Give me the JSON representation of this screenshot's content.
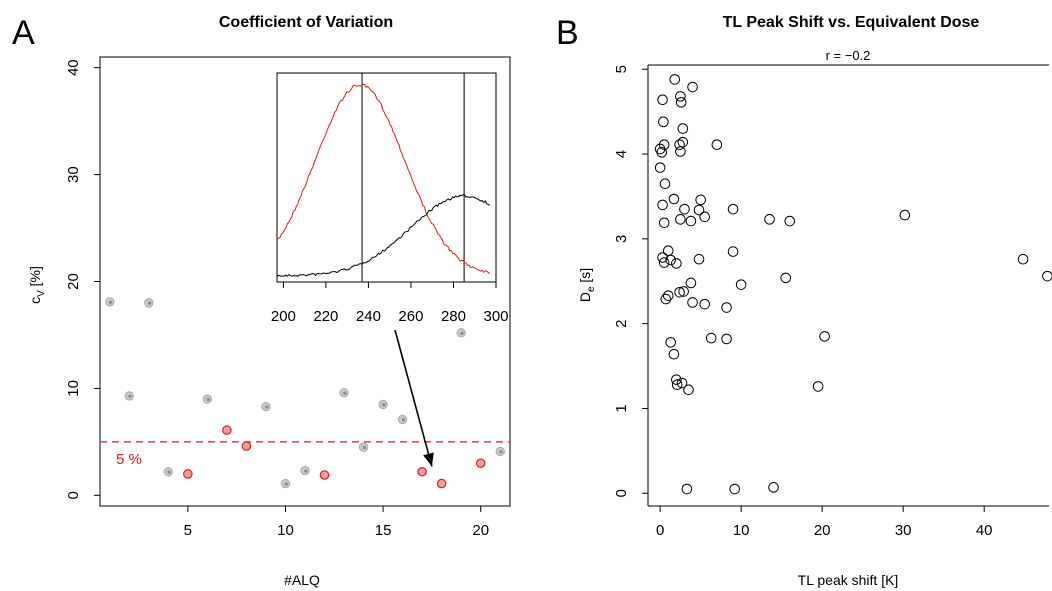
{
  "chart_data": [
    {
      "panel": "A",
      "type": "scatter",
      "title": "Coefficient of Variation",
      "xlabel": "#ALQ",
      "ylabel": "c",
      "ylabel_sub": "V",
      "ylabel_unit": " [%]",
      "xlim": [
        0.5,
        21.5
      ],
      "ylim": [
        -1,
        41
      ],
      "xticks": [
        5,
        10,
        15,
        20
      ],
      "yticks": [
        0,
        10,
        20,
        30,
        40
      ],
      "grid": false,
      "reference_line": {
        "y": 5,
        "label": "5 %",
        "color": "#e31a1c"
      },
      "series": [
        {
          "color": "#aaaaaa",
          "x": [
            1,
            2,
            3,
            4,
            6,
            9,
            10,
            11,
            13,
            14,
            15,
            16,
            19,
            21
          ],
          "y": [
            18.1,
            9.3,
            18.0,
            2.2,
            9.0,
            8.3,
            1.1,
            2.3,
            9.6,
            4.5,
            8.5,
            7.1,
            15.2,
            4.1
          ]
        },
        {
          "color": "#e31a1c",
          "x": [
            5,
            7,
            8,
            12,
            17,
            18,
            20
          ],
          "y": [
            2.0,
            6.1,
            4.6,
            1.9,
            2.2,
            1.1,
            3.0
          ]
        }
      ],
      "inset": {
        "type": "line",
        "xlim": [
          197,
          300
        ],
        "xticks": [
          200,
          220,
          240,
          260,
          280,
          300
        ],
        "vlines": [
          237,
          285
        ],
        "series": [
          {
            "color": "#e31a1c",
            "peak_x": 237
          },
          {
            "color": "#000000",
            "peak_x": 285
          }
        ]
      },
      "arrow": {
        "to_x": 17.5,
        "to_y": 2.7
      }
    },
    {
      "panel": "B",
      "type": "scatter",
      "title": "TL Peak Shift vs. Equivalent Dose",
      "subtitle": "r =  −0.2",
      "xlabel": "TL peak shift [K]",
      "ylabel": "D",
      "ylabel_sub": "e",
      "ylabel_unit": " [s]",
      "xlim": [
        -1.5,
        48
      ],
      "ylim": [
        -0.15,
        5.05
      ],
      "xticks": [
        0,
        10,
        20,
        30,
        40
      ],
      "yticks": [
        0,
        1,
        2,
        3,
        4,
        5
      ],
      "grid": false,
      "series": [
        {
          "color": "#000000",
          "x": [
            1.8,
            4.0,
            2.5,
            2.6,
            0.3,
            2.8,
            0.4,
            2.8,
            0.5,
            0.0,
            2.4,
            7.0,
            0.2,
            2.5,
            0.0,
            0.6,
            1.7,
            5.0,
            0.3,
            3.0,
            4.8,
            9.0,
            5.5,
            13.5,
            16.0,
            30.2,
            2.5,
            3.8,
            0.5,
            1.0,
            0.3,
            9.0,
            1.3,
            0.5,
            44.8,
            4.8,
            47.8,
            15.5,
            3.8,
            10.0,
            2.0,
            2.9,
            2.4,
            1.0,
            0.7,
            4.0,
            8.2,
            5.5,
            1.3,
            6.3,
            8.2,
            20.3,
            1.7,
            2.0,
            2.1,
            2.7,
            3.5,
            19.5,
            3.3,
            9.2,
            14.0
          ],
          "y": [
            4.88,
            4.79,
            4.68,
            4.61,
            4.64,
            4.3,
            4.38,
            4.14,
            4.11,
            4.06,
            4.11,
            4.11,
            4.02,
            4.03,
            3.84,
            3.65,
            3.47,
            3.46,
            3.4,
            3.35,
            3.34,
            3.35,
            3.26,
            3.23,
            3.21,
            3.28,
            3.23,
            3.21,
            3.19,
            2.86,
            2.78,
            2.85,
            2.75,
            2.72,
            2.76,
            2.76,
            2.56,
            2.54,
            2.48,
            2.46,
            2.71,
            2.38,
            2.37,
            2.33,
            2.29,
            2.25,
            2.19,
            2.23,
            1.78,
            1.83,
            1.82,
            1.85,
            1.64,
            1.34,
            1.28,
            1.3,
            1.22,
            1.26,
            0.05,
            0.05,
            0.07
          ]
        }
      ]
    }
  ],
  "labels": {
    "panelA": "A",
    "panelB": "B"
  }
}
